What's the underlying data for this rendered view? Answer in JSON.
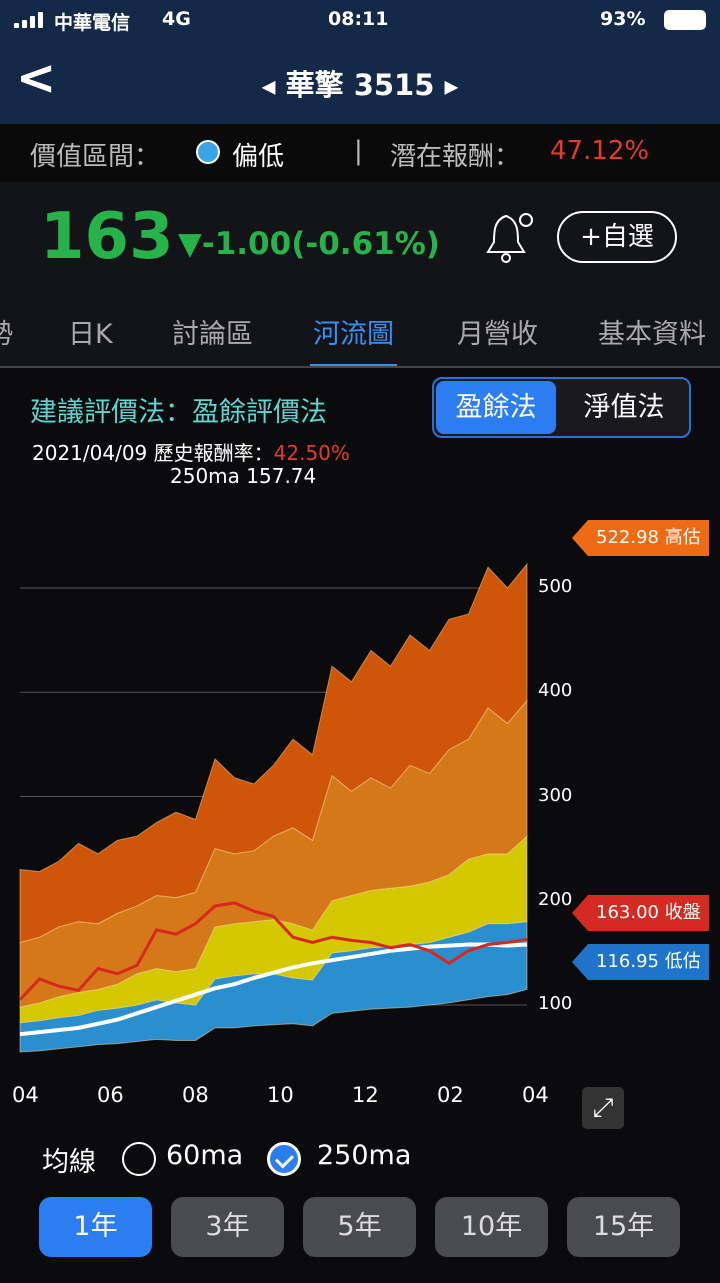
{
  "status": {
    "carrier": "中華電信",
    "network": "4G",
    "time": "08:11",
    "battery": "93%"
  },
  "nav": {
    "back": "<",
    "title": "華擎 3515",
    "prev": "◀",
    "next": "▶"
  },
  "valuation": {
    "label": "價值區間：",
    "status": "偏低",
    "sep": "|",
    "potential_label": "潛在報酬：",
    "potential_value": "47.12%",
    "status_color": "#3aa5e6"
  },
  "quote": {
    "price": "163",
    "change": "▼-1.00(-0.61%)",
    "watch_button": "+自選",
    "color": "#27b34a"
  },
  "tabs": [
    "勢",
    "日K",
    "討論區",
    "河流圖",
    "月營收",
    "基本資料"
  ],
  "active_tab": "河流圖",
  "chart_header": {
    "method": "建議評價法：盈餘評價法",
    "date": "2021/04/09",
    "hist_label": "歷史報酬率：",
    "hist_value": "42.50%",
    "ma_text": "250ma 157.74",
    "toggle": [
      "盈餘法",
      "淨值法"
    ]
  },
  "chart_data": {
    "type": "area",
    "x_labels": [
      "04",
      "06",
      "08",
      "10",
      "12",
      "02",
      "04"
    ],
    "y_ticks": [
      100,
      200,
      300,
      400,
      500
    ],
    "ylim": [
      50,
      560
    ],
    "tags": [
      {
        "value": "522.98",
        "label": "522.98 高估",
        "color": "#ef6a14"
      },
      {
        "value": "163.00",
        "label": "163.00 收盤",
        "color": "#d42a22"
      },
      {
        "value": "116.95",
        "label": "116.95 低估",
        "color": "#1f73c9"
      }
    ],
    "bands": {
      "bottom": [
        55,
        56,
        58,
        60,
        62,
        63,
        65,
        67,
        66,
        66,
        78,
        78,
        80,
        81,
        82,
        80,
        92,
        94,
        96,
        97,
        98,
        100,
        102,
        105,
        108,
        110,
        115
      ],
      "blue_top": [
        83,
        85,
        88,
        90,
        95,
        97,
        100,
        105,
        102,
        100,
        125,
        128,
        130,
        130,
        126,
        124,
        150,
        152,
        155,
        156,
        158,
        160,
        165,
        170,
        178,
        178,
        180
      ],
      "yellow_top": [
        98,
        102,
        108,
        112,
        115,
        120,
        130,
        135,
        132,
        135,
        175,
        178,
        180,
        182,
        178,
        172,
        200,
        205,
        210,
        212,
        214,
        218,
        225,
        240,
        245,
        245,
        262
      ],
      "orange_top": [
        160,
        165,
        175,
        180,
        178,
        188,
        195,
        205,
        203,
        208,
        250,
        245,
        248,
        262,
        270,
        258,
        320,
        305,
        318,
        308,
        330,
        322,
        345,
        355,
        385,
        370,
        392
      ],
      "top": [
        230,
        228,
        238,
        255,
        245,
        258,
        262,
        275,
        285,
        278,
        336,
        318,
        312,
        330,
        355,
        340,
        425,
        410,
        440,
        425,
        455,
        440,
        470,
        475,
        520,
        500,
        523
      ]
    },
    "band_colors": [
      "#2a8fcf",
      "#d4c800",
      "#d4781a",
      "#cf5508"
    ],
    "price": [
      105,
      125,
      118,
      114,
      135,
      130,
      138,
      172,
      168,
      178,
      195,
      198,
      190,
      185,
      165,
      160,
      165,
      162,
      160,
      155,
      158,
      152,
      140,
      152,
      158,
      160,
      163
    ],
    "ma250": [
      72,
      74,
      76,
      78,
      82,
      86,
      92,
      98,
      104,
      110,
      116,
      120,
      126,
      131,
      136,
      140,
      143,
      146,
      149,
      152,
      154,
      156,
      157,
      158,
      158,
      157,
      158
    ]
  },
  "ma_options": {
    "label": "均線",
    "opt1": "60ma",
    "opt2": "250ma",
    "selected": "250ma"
  },
  "ranges": [
    "1年",
    "3年",
    "5年",
    "10年",
    "15年"
  ],
  "selected_range": "1年"
}
